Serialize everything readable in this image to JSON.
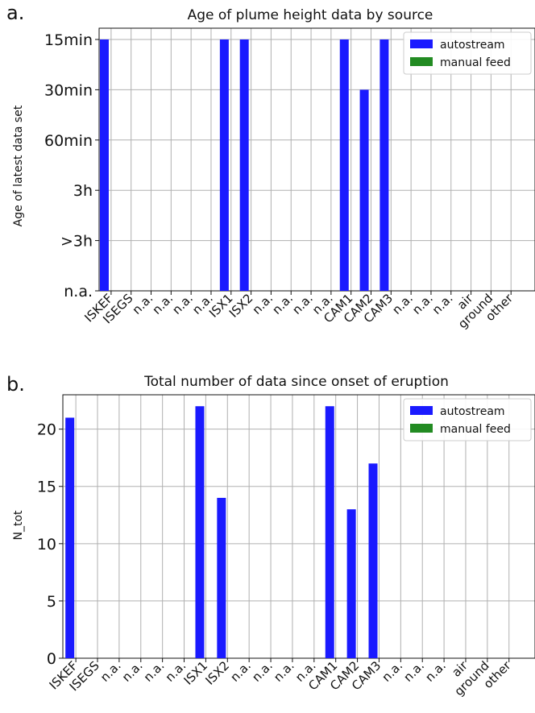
{
  "chart_data": [
    {
      "panel": "a.",
      "type": "bar",
      "title": "Age of plume height data by source",
      "ylabel": "Age of latest data set",
      "yticks": [
        "n.a.",
        ">3h",
        "3h",
        "60min",
        "30min",
        "15min"
      ],
      "categories": [
        "ISKEF",
        "ISEGS",
        "n.a.",
        "n.a.",
        "n.a.",
        "n.a.",
        "ISX1",
        "ISX2",
        "n.a.",
        "n.a.",
        "n.a.",
        "n.a.",
        "CAM1",
        "CAM2",
        "CAM3",
        "n.a.",
        "n.a.",
        "n.a.",
        "air",
        "ground",
        "other"
      ],
      "series": [
        {
          "name": "autostream",
          "color": "#1a1aff",
          "values": [
            "15min",
            "n.a.",
            "n.a.",
            "n.a.",
            "n.a.",
            "n.a.",
            "15min",
            "15min",
            "n.a.",
            "n.a.",
            "n.a.",
            "n.a.",
            "15min",
            "30min",
            "15min",
            "n.a.",
            "n.a.",
            "n.a.",
            "n.a.",
            "n.a.",
            "n.a."
          ]
        },
        {
          "name": "manual feed",
          "color": "#228b22",
          "values": [
            "n.a.",
            "n.a.",
            "n.a.",
            "n.a.",
            "n.a.",
            "n.a.",
            "n.a.",
            "n.a.",
            "n.a.",
            "n.a.",
            "n.a.",
            "n.a.",
            "n.a.",
            "n.a.",
            "n.a.",
            "n.a.",
            "n.a.",
            "n.a.",
            "n.a.",
            "n.a.",
            "n.a."
          ]
        }
      ],
      "grid": true,
      "legend": "top-right"
    },
    {
      "panel": "b.",
      "type": "bar",
      "title": "Total number of data since onset of eruption",
      "ylabel": "N_tot",
      "ylim": [
        0,
        23
      ],
      "yticks": [
        0,
        5,
        10,
        15,
        20
      ],
      "categories": [
        "ISKEF",
        "ISEGS",
        "n.a.",
        "n.a.",
        "n.a.",
        "n.a.",
        "ISX1",
        "ISX2",
        "n.a.",
        "n.a.",
        "n.a.",
        "n.a.",
        "CAM1",
        "CAM2",
        "CAM3",
        "n.a.",
        "n.a.",
        "n.a.",
        "air",
        "ground",
        "other"
      ],
      "series": [
        {
          "name": "autostream",
          "color": "#1a1aff",
          "values": [
            21,
            0,
            0,
            0,
            0,
            0,
            22,
            14,
            0,
            0,
            0,
            0,
            22,
            13,
            17,
            0,
            0,
            0,
            0,
            0,
            0
          ]
        },
        {
          "name": "manual feed",
          "color": "#228b22",
          "values": [
            0,
            0,
            0,
            0,
            0,
            0,
            0,
            0,
            0,
            0,
            0,
            0,
            0,
            0,
            0,
            0,
            0,
            0,
            0,
            0,
            0
          ]
        }
      ],
      "grid": true,
      "legend": "top-right"
    }
  ]
}
